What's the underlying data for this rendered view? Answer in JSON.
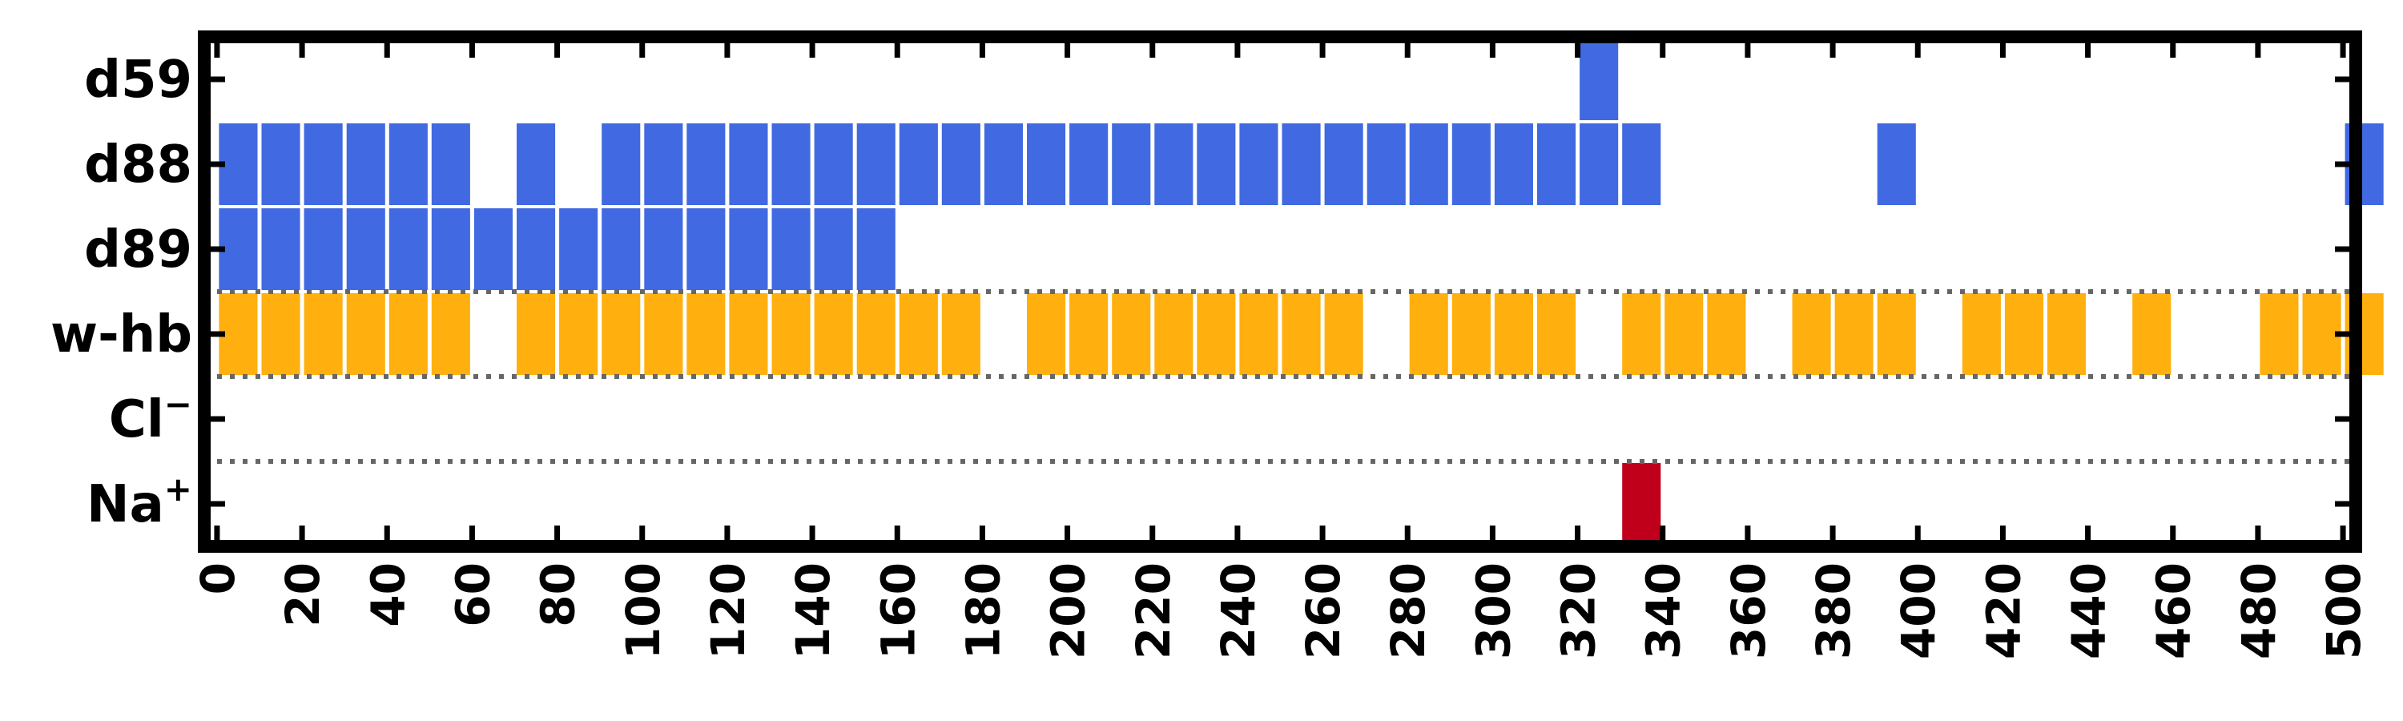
{
  "chart_data": {
    "type": "heatmap",
    "title": "",
    "xlabel": "",
    "ylabel": "",
    "xlim": [
      -3,
      503
    ],
    "x_ticks": [
      0,
      20,
      40,
      60,
      80,
      100,
      120,
      140,
      160,
      180,
      200,
      220,
      240,
      260,
      280,
      300,
      320,
      340,
      360,
      380,
      400,
      420,
      440,
      460,
      480,
      500
    ],
    "x_tick_labels": [
      "0",
      "20",
      "40",
      "60",
      "80",
      "100",
      "120",
      "140",
      "160",
      "180",
      "200",
      "220",
      "240",
      "260",
      "280",
      "300",
      "320",
      "340",
      "360",
      "380",
      "400",
      "420",
      "440",
      "460",
      "480",
      "500"
    ],
    "bin_width": 10,
    "rows": [
      {
        "label": "d59",
        "label_main": "d59",
        "label_sup": "",
        "color": "#4169E1",
        "starts": [
          320
        ]
      },
      {
        "label": "d88",
        "label_main": "d88",
        "label_sup": "",
        "color": "#4169E1",
        "starts": [
          0,
          10,
          20,
          30,
          40,
          50,
          70,
          90,
          100,
          110,
          120,
          130,
          140,
          150,
          160,
          170,
          180,
          190,
          200,
          210,
          220,
          230,
          240,
          250,
          260,
          270,
          280,
          290,
          300,
          310,
          320,
          330,
          390,
          500
        ]
      },
      {
        "label": "d89",
        "label_main": "d89",
        "label_sup": "",
        "color": "#4169E1",
        "starts": [
          0,
          10,
          20,
          30,
          40,
          50,
          60,
          70,
          80,
          90,
          100,
          110,
          120,
          130,
          140,
          150
        ]
      },
      {
        "label": "w-hb",
        "label_main": "w-hb",
        "label_sup": "",
        "color": "#FFB00F",
        "starts": [
          0,
          10,
          20,
          30,
          40,
          50,
          70,
          80,
          90,
          100,
          110,
          120,
          130,
          140,
          150,
          160,
          170,
          190,
          200,
          210,
          220,
          230,
          240,
          250,
          260,
          280,
          290,
          300,
          310,
          330,
          340,
          350,
          370,
          380,
          390,
          410,
          420,
          430,
          450,
          480,
          490,
          500
        ]
      },
      {
        "label": "Cl−",
        "label_main": "Cl",
        "label_sup": "−",
        "color": "#4169E1",
        "starts": []
      },
      {
        "label": "Na+",
        "label_main": "Na",
        "label_sup": "+",
        "color": "#C0001A",
        "starts": [
          330
        ]
      }
    ],
    "separators_after_row": [
      2,
      3,
      4
    ],
    "grid": false,
    "legend": "none"
  }
}
